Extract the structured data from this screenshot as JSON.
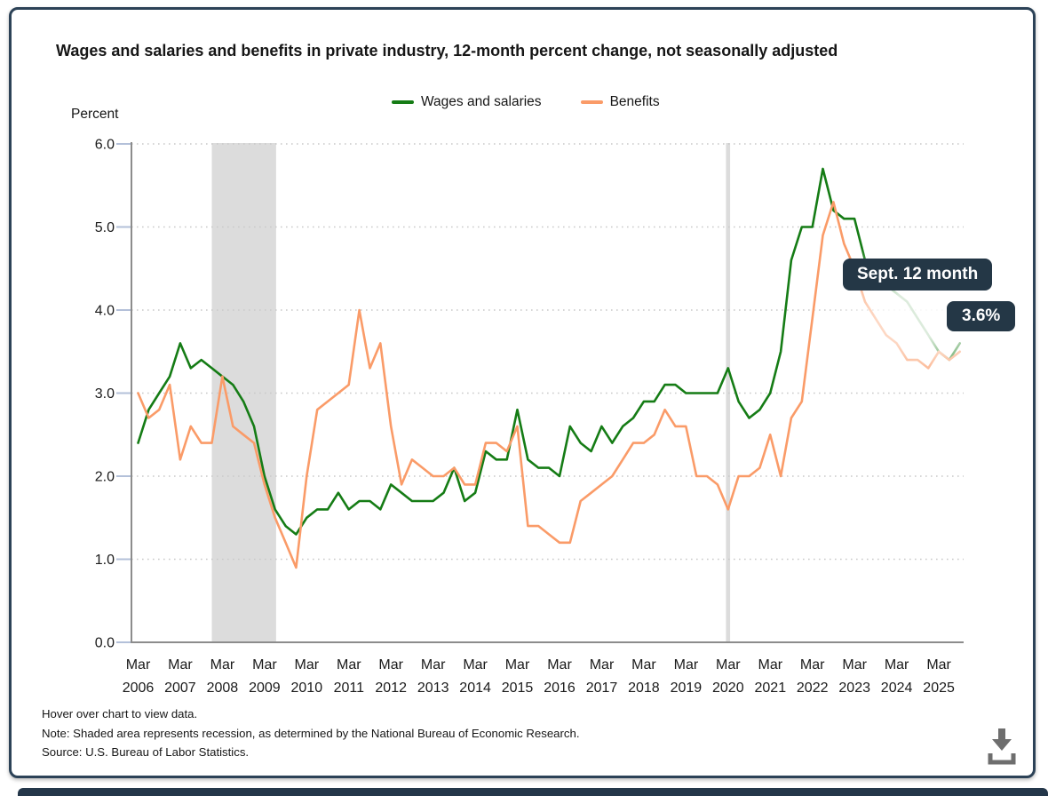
{
  "header": {
    "title": "Wages and salaries and benefits in private industry, 12-month percent change, not seasonally adjusted"
  },
  "legend": {
    "items": [
      {
        "label": "Wages and salaries",
        "color": "#157c15"
      },
      {
        "label": "Benefits",
        "color": "#fa9b68"
      }
    ]
  },
  "tooltip": {
    "period": "Sept. 12 month",
    "value": "3.6%",
    "bg_color": "#243746"
  },
  "footnotes": [
    "Hover over chart to view data.",
    "Note: Shaded area represents recession, as determined by the National Bureau of Economic Research.",
    "Source: U.S. Bureau of Labor Statistics."
  ],
  "chart_data": {
    "type": "line",
    "title": "Wages and salaries and benefits in private industry, 12-month percent change, not seasonally adjusted",
    "xlabel": "",
    "ylabel": "Percent",
    "ylim": [
      0.0,
      6.0
    ],
    "y_tick_labels": [
      "0.0",
      "1.0",
      "2.0",
      "3.0",
      "4.0",
      "5.0",
      "6.0"
    ],
    "x_tick_month": "Mar",
    "x_tick_years": [
      2006,
      2007,
      2008,
      2009,
      2010,
      2011,
      2012,
      2013,
      2014,
      2015,
      2016,
      2017,
      2018,
      2019,
      2020,
      2021,
      2022,
      2023,
      2024,
      2025
    ],
    "x_start": "Mar 2006",
    "x_end": "Sep 2025",
    "frequency": "quarterly",
    "grid": "dotted horizontal gridlines at each 1.0",
    "legend_position": "top",
    "recession_color": "#dcdcdc",
    "recession_bands_quarter_index": [
      [
        7,
        13.1
      ],
      [
        55.8,
        56.2
      ]
    ],
    "series": [
      {
        "name": "Wages and salaries",
        "color": "#157c15",
        "values": [
          2.4,
          2.8,
          3.0,
          3.2,
          3.6,
          3.3,
          3.4,
          3.3,
          3.2,
          3.1,
          2.9,
          2.6,
          2.0,
          1.6,
          1.4,
          1.3,
          1.5,
          1.6,
          1.6,
          1.8,
          1.6,
          1.7,
          1.7,
          1.6,
          1.9,
          1.8,
          1.7,
          1.7,
          1.7,
          1.8,
          2.1,
          1.7,
          1.8,
          2.3,
          2.2,
          2.2,
          2.8,
          2.2,
          2.1,
          2.1,
          2.0,
          2.6,
          2.4,
          2.3,
          2.6,
          2.4,
          2.6,
          2.7,
          2.9,
          2.9,
          3.1,
          3.1,
          3.0,
          3.0,
          3.0,
          3.0,
          3.3,
          2.9,
          2.7,
          2.8,
          3.0,
          3.5,
          4.6,
          5.0,
          5.0,
          5.7,
          5.2,
          5.1,
          5.1,
          4.6,
          4.5,
          4.3,
          4.2,
          4.1,
          3.9,
          3.7,
          3.5,
          3.4,
          3.6
        ]
      },
      {
        "name": "Benefits",
        "color": "#fa9b68",
        "values": [
          3.0,
          2.7,
          2.8,
          3.1,
          2.2,
          2.6,
          2.4,
          2.4,
          3.2,
          2.6,
          2.5,
          2.4,
          1.9,
          1.5,
          1.2,
          0.9,
          2.0,
          2.8,
          2.9,
          3.0,
          3.1,
          4.0,
          3.3,
          3.6,
          2.6,
          1.9,
          2.2,
          2.1,
          2.0,
          2.0,
          2.1,
          1.9,
          1.9,
          2.4,
          2.4,
          2.3,
          2.6,
          1.4,
          1.4,
          1.3,
          1.2,
          1.2,
          1.7,
          1.8,
          1.9,
          2.0,
          2.2,
          2.4,
          2.4,
          2.5,
          2.8,
          2.6,
          2.6,
          2.0,
          2.0,
          1.9,
          1.6,
          2.0,
          2.0,
          2.1,
          2.5,
          2.0,
          2.7,
          2.9,
          3.9,
          4.9,
          5.3,
          4.8,
          4.5,
          4.1,
          3.9,
          3.7,
          3.6,
          3.4,
          3.4,
          3.3,
          3.5,
          3.4,
          3.5
        ]
      }
    ],
    "annotations": [
      {
        "text": "Sept. 12 month",
        "value": "3.6%",
        "refers_to": "last Wages and salaries point (Sep 2025)"
      }
    ]
  }
}
